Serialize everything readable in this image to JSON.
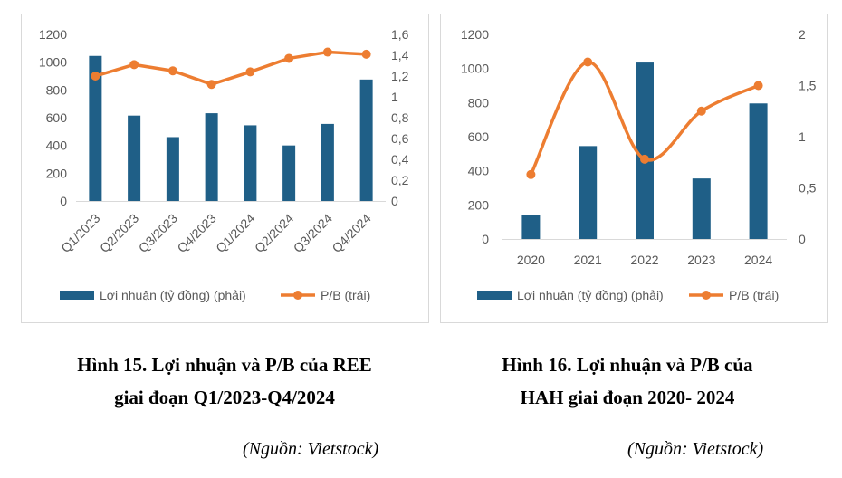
{
  "chart_data": [
    {
      "type": "bar+line",
      "categories": [
        "Q1/2023",
        "Q2/2023",
        "Q3/2023",
        "Q4/2023",
        "Q1/2024",
        "Q2/2024",
        "Q3/2024",
        "Q4/2024"
      ],
      "series": [
        {
          "name": "Lợi nhuận (tỷ đồng) (phải)",
          "kind": "bar",
          "axis": "left",
          "color": "#1f5f87",
          "values": [
            1045,
            615,
            460,
            632,
            545,
            400,
            555,
            875
          ]
        },
        {
          "name": "P/B (trái)",
          "kind": "line",
          "axis": "right",
          "color": "#ed7d31",
          "values": [
            1.2,
            1.31,
            1.25,
            1.12,
            1.24,
            1.37,
            1.43,
            1.41
          ]
        }
      ],
      "y_left": {
        "min": 0,
        "max": 1200,
        "ticks": [
          "0",
          "200",
          "400",
          "600",
          "800",
          "1000",
          "1200"
        ]
      },
      "y_right": {
        "min": 0,
        "max": 1.6,
        "ticks": [
          "0",
          "0,2",
          "0,4",
          "0,6",
          "0,8",
          "1",
          "1,2",
          "1,4",
          "1,6"
        ]
      },
      "legend_position": "bottom",
      "grid": false
    },
    {
      "type": "bar+line",
      "categories": [
        "2020",
        "2021",
        "2022",
        "2023",
        "2024"
      ],
      "series": [
        {
          "name": "Lợi nhuận (tỷ đồng) (phải)",
          "kind": "bar",
          "axis": "left",
          "color": "#1f5f87",
          "values": [
            140,
            545,
            1035,
            355,
            795
          ]
        },
        {
          "name": "P/B (trái)",
          "kind": "line",
          "axis": "right",
          "color": "#ed7d31",
          "values": [
            0.63,
            1.73,
            0.78,
            1.25,
            1.5
          ]
        }
      ],
      "y_left": {
        "min": 0,
        "max": 1200,
        "ticks": [
          "0",
          "200",
          "400",
          "600",
          "800",
          "1000",
          "1200"
        ]
      },
      "y_right": {
        "min": 0,
        "max": 2,
        "ticks": [
          "0",
          "0,5",
          "1",
          "1,5",
          "2"
        ]
      },
      "legend_position": "bottom",
      "grid": false
    }
  ],
  "captions": [
    {
      "line1": "Hình 15. Lợi nhuận và P/B của REE",
      "line2": "giai đoạn Q1/2023-Q4/2024",
      "source": "(Nguồn: Vietstock)"
    },
    {
      "line1": "Hình 16. Lợi nhuận và P/B của",
      "line2": "HAH giai đoạn 2020- 2024",
      "source": "(Nguồn: Vietstock)"
    }
  ]
}
